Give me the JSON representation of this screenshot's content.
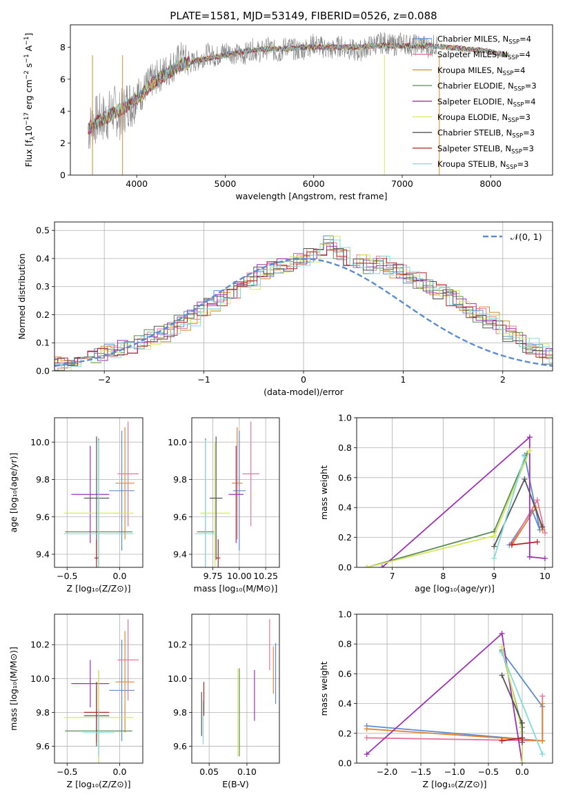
{
  "figure": {
    "title": "PLATE=1581, MJD=53149, FIBERID=0526, z=0.088"
  },
  "chart_data": [
    {
      "id": "spectrum",
      "type": "line",
      "xlabel": "wavelength [Angstrom, rest frame]",
      "ylabel": "Flux [f_λ 10^-17 erg cm^-2 s^-1 A^-1]",
      "xlim": [
        3250,
        8700
      ],
      "ylim": [
        0,
        9.4
      ],
      "xticks": [
        4000,
        5000,
        6000,
        7000,
        8000
      ],
      "yticks": [
        0,
        2,
        4,
        6,
        8
      ],
      "grid": false,
      "legend_position": "lower-right",
      "observed": {
        "color": "#808080",
        "x": [
          3450,
          3500,
          3550,
          3600,
          3650,
          3700,
          3750,
          3800,
          3850,
          3900,
          3950,
          4000,
          4050,
          4100,
          4150,
          4200,
          4300,
          4400,
          4500,
          4600,
          4700,
          4800,
          4900,
          5000,
          5100,
          5200,
          5300,
          5400,
          5500,
          5600,
          5700,
          5800,
          5900,
          6000,
          6100,
          6200,
          6300,
          6400,
          6500,
          6600,
          6700,
          6800,
          6900,
          7000,
          7100,
          7200,
          7300,
          7400
        ],
        "y": [
          2.8,
          3.2,
          3.5,
          3.6,
          3.5,
          3.9,
          4.1,
          3.7,
          4.0,
          4.6,
          4.4,
          5.2,
          5.0,
          5.5,
          5.8,
          6.0,
          6.4,
          6.8,
          7.3,
          7.0,
          7.2,
          7.6,
          7.4,
          7.8,
          7.6,
          7.5,
          7.9,
          7.7,
          8.0,
          7.6,
          8.1,
          7.8,
          7.9,
          8.2,
          8.0,
          7.8,
          8.1,
          7.9,
          7.7,
          8.0,
          8.2,
          8.3,
          8.1,
          8.3,
          8.1,
          8.2,
          8.0,
          8.2
        ]
      },
      "series": [
        {
          "name": "Chabrier MILES, N_SSP=4",
          "color": "#5b8bd0"
        },
        {
          "name": "Salpeter MILES, N_SSP=4",
          "color": "#e8739a"
        },
        {
          "name": "Kroupa MILES, N_SSP=4",
          "color": "#e0852b"
        },
        {
          "name": "Chabrier ELODIE, N_SSP=3",
          "color": "#5a8a5a"
        },
        {
          "name": "Salpeter ELODIE, N_SSP=4",
          "color": "#9c2fb6"
        },
        {
          "name": "Kroupa ELODIE, N_SSP=3",
          "color": "#d6e85a"
        },
        {
          "name": "Chabrier STELIB, N_SSP=3",
          "color": "#555555"
        },
        {
          "name": "Salpeter STELIB, N_SSP=3",
          "color": "#b22222"
        },
        {
          "name": "Kroupa STELIB, N_SSP=3",
          "color": "#80dcdc"
        }
      ],
      "model": {
        "x": [
          3450,
          3550,
          3650,
          3750,
          3850,
          3950,
          4050,
          4150,
          4300,
          4500,
          4700,
          4900,
          5100,
          5300,
          5500,
          5700,
          5900,
          6100,
          6300,
          6500,
          6700,
          6900,
          7100,
          7300,
          7500,
          7700,
          7900,
          8100,
          8200
        ],
        "y": [
          2.9,
          3.3,
          3.6,
          3.9,
          4.2,
          4.6,
          5.0,
          5.6,
          6.2,
          6.9,
          7.2,
          7.4,
          7.6,
          7.8,
          7.9,
          7.9,
          8.0,
          8.0,
          8.0,
          8.0,
          8.1,
          8.1,
          8.1,
          8.1,
          8.0,
          7.9,
          7.8,
          7.6,
          7.5
        ]
      }
    },
    {
      "id": "residuals",
      "type": "line",
      "xlabel": "(data-model)/error",
      "ylabel": "Normed distribution",
      "xlim": [
        -2.5,
        2.5
      ],
      "ylim": [
        0,
        0.53
      ],
      "xticks": [
        -2,
        -1,
        0,
        1,
        2
      ],
      "yticks": [
        0.0,
        0.1,
        0.2,
        0.3,
        0.4,
        0.5
      ],
      "grid": true,
      "legend_position": "top-right",
      "reference_curve": {
        "name": "N(0,1)",
        "color": "#5b8bd0"
      },
      "bin_width": 0.1,
      "histogram_envelope": [
        0.03,
        0.02,
        0.02,
        0.04,
        0.05,
        0.05,
        0.06,
        0.07,
        0.08,
        0.09,
        0.1,
        0.12,
        0.13,
        0.15,
        0.17,
        0.19,
        0.22,
        0.24,
        0.26,
        0.28,
        0.3,
        0.32,
        0.35,
        0.36,
        0.37,
        0.38,
        0.39,
        0.41,
        0.44,
        0.46,
        0.42,
        0.4,
        0.39,
        0.37,
        0.38,
        0.36,
        0.35,
        0.34,
        0.32,
        0.3,
        0.28,
        0.26,
        0.24,
        0.21,
        0.2,
        0.18,
        0.15,
        0.13,
        0.11,
        0.09,
        0.07,
        0.05,
        0.04,
        0.03
      ]
    },
    {
      "id": "age_vs_Z",
      "type": "scatter",
      "xlabel": "Z [log10(Z/Z⊙)]",
      "ylabel": "age  [log10(age/yr)]",
      "xlim": [
        -0.62,
        0.22
      ],
      "ylim": [
        9.33,
        10.13
      ],
      "xticks": [
        -0.5,
        0.0
      ],
      "yticks": [
        9.4,
        9.6,
        9.8,
        10.0
      ],
      "grid": true,
      "points": [
        {
          "x": 0.02,
          "y": 9.74,
          "xerr": 0.12,
          "yerr": 0.32,
          "series": 0
        },
        {
          "x": 0.08,
          "y": 9.83,
          "xerr": 0.1,
          "yerr": 0.28,
          "series": 1
        },
        {
          "x": 0.05,
          "y": 9.78,
          "xerr": 0.09,
          "yerr": 0.3,
          "series": 2
        },
        {
          "x": -0.2,
          "y": 9.52,
          "xerr": 0.32,
          "yerr": 0.5,
          "series": 3
        },
        {
          "x": -0.28,
          "y": 9.72,
          "xerr": 0.18,
          "yerr": 0.26,
          "series": 4
        },
        {
          "x": -0.2,
          "y": 9.62,
          "xerr": 0.33,
          "yerr": 0.38,
          "series": 5
        },
        {
          "x": -0.22,
          "y": 9.7,
          "xerr": 0.12,
          "yerr": 0.33,
          "series": 6
        },
        {
          "x": -0.22,
          "y": 9.38,
          "xerr": 0.02,
          "yerr": 0.1,
          "series": 7
        },
        {
          "x": -0.2,
          "y": 9.51,
          "xerr": 0.33,
          "yerr": 0.5,
          "series": 8
        }
      ]
    },
    {
      "id": "age_vs_mass",
      "type": "scatter",
      "xlabel": "mass [log10(M/M⊙)]",
      "ylabel": "",
      "xlim": [
        9.55,
        10.38
      ],
      "ylim": [
        9.33,
        10.13
      ],
      "xticks": [
        9.75,
        10.0,
        10.25
      ],
      "yticks": [
        9.4,
        9.6,
        9.8,
        10.0
      ],
      "grid": true,
      "points": [
        {
          "x": 10.0,
          "y": 9.74,
          "xerr": 0.06,
          "yerr": 0.32,
          "series": 0
        },
        {
          "x": 10.11,
          "y": 9.83,
          "xerr": 0.08,
          "yerr": 0.28,
          "series": 1
        },
        {
          "x": 9.98,
          "y": 9.78,
          "xerr": 0.05,
          "yerr": 0.3,
          "series": 2
        },
        {
          "x": 9.68,
          "y": 9.52,
          "xerr": 0.08,
          "yerr": 0.5,
          "series": 3
        },
        {
          "x": 9.97,
          "y": 9.72,
          "xerr": 0.07,
          "yerr": 0.26,
          "series": 4
        },
        {
          "x": 9.77,
          "y": 9.62,
          "xerr": 0.14,
          "yerr": 0.38,
          "series": 5
        },
        {
          "x": 9.78,
          "y": 9.7,
          "xerr": 0.06,
          "yerr": 0.33,
          "series": 6
        },
        {
          "x": 9.8,
          "y": 9.38,
          "xerr": 0.02,
          "yerr": 0.1,
          "series": 7
        },
        {
          "x": 9.68,
          "y": 9.51,
          "xerr": 0.1,
          "yerr": 0.5,
          "series": 8
        }
      ]
    },
    {
      "id": "weight_vs_age",
      "type": "line",
      "xlabel": "age  [log10(age/yr)]",
      "ylabel": "mass weight",
      "xlim": [
        6.3,
        10.15
      ],
      "ylim": [
        0,
        1
      ],
      "xticks": [
        7,
        8,
        9,
        10
      ],
      "yticks": [
        0.0,
        0.2,
        0.4,
        0.6,
        0.8,
        1.0
      ],
      "grid": true,
      "lines": [
        {
          "series": 0,
          "x": [
            9.3,
            9.75,
            9.9,
            9.6
          ],
          "y": [
            0.15,
            0.38,
            0.25,
            0.75
          ]
        },
        {
          "series": 1,
          "x": [
            9.35,
            9.85,
            10.0
          ],
          "y": [
            0.16,
            0.45,
            0.23
          ]
        },
        {
          "series": 2,
          "x": [
            9.35,
            9.82,
            9.95
          ],
          "y": [
            0.15,
            0.4,
            0.25
          ]
        },
        {
          "series": 3,
          "x": [
            6.5,
            9.0,
            9.65
          ],
          "y": [
            0.0,
            0.24,
            0.76
          ]
        },
        {
          "series": 4,
          "x": [
            6.8,
            9.7,
            9.7,
            10.0
          ],
          "y": [
            0.0,
            0.87,
            0.07,
            0.06
          ]
        },
        {
          "series": 5,
          "x": [
            6.5,
            9.0,
            9.7
          ],
          "y": [
            0.0,
            0.21,
            0.78
          ]
        },
        {
          "series": 6,
          "x": [
            9.0,
            9.6,
            9.95
          ],
          "y": [
            0.14,
            0.59,
            0.27
          ]
        },
        {
          "series": 7,
          "x": [
            9.35,
            9.85
          ],
          "y": [
            0.15,
            0.17
          ]
        },
        {
          "series": 8,
          "x": [
            9.0,
            9.6
          ],
          "y": [
            0.06,
            0.74
          ]
        }
      ]
    },
    {
      "id": "mass_vs_Z",
      "type": "scatter",
      "xlabel": "Z [log10(Z/Z⊙)]",
      "ylabel": "mass [log10(M/M⊙)]",
      "xlim": [
        -0.62,
        0.22
      ],
      "ylim": [
        9.5,
        10.38
      ],
      "xticks": [
        -0.5,
        0.0
      ],
      "yticks": [
        9.6,
        9.8,
        10.0,
        10.2
      ],
      "grid": true,
      "points": [
        {
          "x": 0.02,
          "y": 9.93,
          "xerr": 0.12,
          "yerr": 0.3,
          "series": 0
        },
        {
          "x": 0.08,
          "y": 10.11,
          "xerr": 0.1,
          "yerr": 0.24,
          "series": 1
        },
        {
          "x": 0.05,
          "y": 9.98,
          "xerr": 0.09,
          "yerr": 0.3,
          "series": 2
        },
        {
          "x": -0.2,
          "y": 9.69,
          "xerr": 0.32,
          "yerr": 0.36,
          "series": 3
        },
        {
          "x": -0.28,
          "y": 9.97,
          "xerr": 0.18,
          "yerr": 0.14,
          "series": 4
        },
        {
          "x": -0.2,
          "y": 9.77,
          "xerr": 0.33,
          "yerr": 0.28,
          "series": 5
        },
        {
          "x": -0.22,
          "y": 9.78,
          "xerr": 0.12,
          "yerr": 0.18,
          "series": 6
        },
        {
          "x": -0.22,
          "y": 9.8,
          "xerr": 0.12,
          "yerr": 0.18,
          "series": 7
        },
        {
          "x": -0.2,
          "y": 9.68,
          "xerr": 0.15,
          "yerr": 0.14,
          "series": 8
        }
      ]
    },
    {
      "id": "mass_vs_EBV",
      "type": "scatter",
      "xlabel": "E(B-V)",
      "ylabel": "",
      "xlim": [
        0.027,
        0.143
      ],
      "ylim": [
        9.5,
        10.38
      ],
      "xticks": [
        0.05,
        0.1
      ],
      "yticks": [
        9.6,
        9.8,
        10.0,
        10.2
      ],
      "grid": true,
      "points": [
        {
          "x": 0.138,
          "y": 10.03,
          "yerr": 0.18,
          "series": 0
        },
        {
          "x": 0.13,
          "y": 10.2,
          "yerr": 0.15,
          "series": 1
        },
        {
          "x": 0.135,
          "y": 10.05,
          "yerr": 0.14,
          "series": 2
        },
        {
          "x": 0.09,
          "y": 9.8,
          "yerr": 0.26,
          "series": 3
        },
        {
          "x": 0.11,
          "y": 9.9,
          "yerr": 0.15,
          "series": 4
        },
        {
          "x": 0.088,
          "y": 9.8,
          "yerr": 0.26,
          "series": 5
        },
        {
          "x": 0.04,
          "y": 9.79,
          "yerr": 0.13,
          "series": 6
        },
        {
          "x": 0.043,
          "y": 9.88,
          "yerr": 0.1,
          "series": 7
        },
        {
          "x": 0.042,
          "y": 9.74,
          "yerr": 0.13,
          "series": 8
        }
      ]
    },
    {
      "id": "weight_vs_Z",
      "type": "line",
      "xlabel": "Z [log10(Z/Z⊙)]",
      "ylabel": "mass weight",
      "xlim": [
        -2.45,
        0.45
      ],
      "ylim": [
        0,
        1
      ],
      "xticks": [
        -2.0,
        -1.5,
        -1.0,
        -0.5,
        0.0
      ],
      "yticks": [
        0.0,
        0.2,
        0.4,
        0.6,
        0.8,
        1.0
      ],
      "grid": true,
      "lines": [
        {
          "series": 0,
          "x": [
            -2.3,
            0.3,
            0.3,
            -0.3
          ],
          "y": [
            0.25,
            0.15,
            0.38,
            0.75
          ]
        },
        {
          "series": 1,
          "x": [
            -2.3,
            0.3,
            0.3
          ],
          "y": [
            0.17,
            0.15,
            0.45
          ]
        },
        {
          "series": 2,
          "x": [
            -2.3,
            0.3,
            0.3
          ],
          "y": [
            0.23,
            0.15,
            0.4
          ]
        },
        {
          "series": 3,
          "x": [
            -0.3,
            0.0,
            0.0
          ],
          "y": [
            0.76,
            0.24,
            0.0
          ]
        },
        {
          "series": 4,
          "x": [
            -2.3,
            -0.3,
            0.0
          ],
          "y": [
            0.06,
            0.87,
            0.0
          ]
        },
        {
          "series": 5,
          "x": [
            -0.3,
            0.0,
            0.0
          ],
          "y": [
            0.78,
            0.21,
            0.0
          ]
        },
        {
          "series": 6,
          "x": [
            -0.3,
            0.0,
            0.0
          ],
          "y": [
            0.59,
            0.27,
            0.14
          ]
        },
        {
          "series": 7,
          "x": [
            -0.3,
            0.0
          ],
          "y": [
            0.15,
            0.17
          ]
        },
        {
          "series": 8,
          "x": [
            -0.3,
            0.3
          ],
          "y": [
            0.74,
            0.06
          ]
        }
      ]
    }
  ]
}
